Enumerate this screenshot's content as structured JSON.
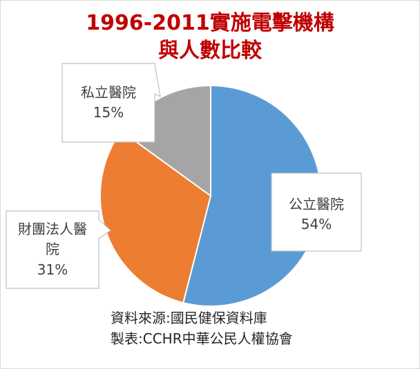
{
  "title": {
    "line1": "1996-2011實施電擊機構",
    "line2": "與人數比較"
  },
  "footer": {
    "source": "資料來源:國民健保資料庫",
    "made_by": "製表:CCHR中華公民人權協會"
  },
  "colors": {
    "title": "#c00000",
    "public": "#5b9bd5",
    "foundation": "#ed7d31",
    "private": "#a5a5a5"
  },
  "chart_data": {
    "type": "pie",
    "title": "1996-2011實施電擊機構與人數比較",
    "slices": [
      {
        "label": "公立醫院",
        "value": 54,
        "display": "54%",
        "color": "#5b9bd5"
      },
      {
        "label": "財團法人醫院",
        "value": 31,
        "display": "31%",
        "color": "#ed7d31"
      },
      {
        "label": "私立醫院",
        "value": 15,
        "display": "15%",
        "color": "#a5a5a5"
      }
    ],
    "start": "12 o'clock",
    "direction": "clockwise"
  }
}
